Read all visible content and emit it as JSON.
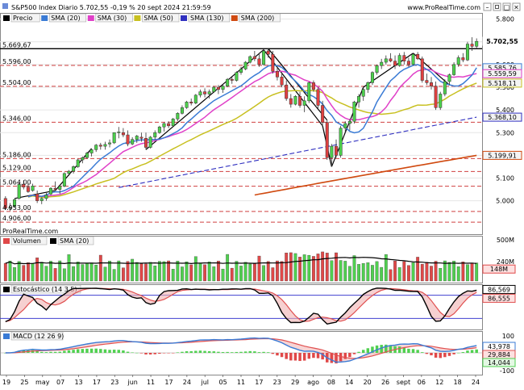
{
  "header": {
    "title": "S&P500 Index Diario 5.702,55 -0,19 % 20 sept 2024 21:59:59",
    "brand": "www.ProRealTime.com",
    "watermark": "ProRealTime.com"
  },
  "colors": {
    "up": "#4cd04c",
    "down": "#e04040",
    "sma20": "#3a7bd5",
    "sma30": "#e040c8",
    "sma50": "#c8c020",
    "sma130": "#3030c0",
    "sma200": "#d04a10",
    "volume_up": "#50d050",
    "volume_down": "#e04848",
    "stoch_k": "#000000",
    "stoch_d": "#e05050",
    "macd_line": "#3a7bd5",
    "macd_signal": "#e05050"
  },
  "chart_data": [
    {
      "type": "candlestick",
      "name": "price",
      "legend": [
        "Precio",
        "SMA (20)",
        "SMA (30)",
        "SMA (50)",
        "SMA (130)",
        "SMA (200)"
      ],
      "ylim": [
        4860,
        5820
      ],
      "yticks": [
        "5.800",
        "5.700",
        "5.600",
        "5.500",
        "5.400",
        "5.300",
        "5.200",
        "5.100",
        "5.000"
      ],
      "left_levels": [
        "5.669,67",
        "5.596,00",
        "5.504,00",
        "5.346,00",
        "5.186,00",
        "5.129,00",
        "5.064,00",
        "4.953,00",
        "4.906,00"
      ],
      "right_labels": {
        "last": "5.702,55",
        "sma20": "5.585,76",
        "sma30": "5.559,59",
        "sma50": "5.518,11",
        "sma130": "5.368,10",
        "sma200": "5.199,91"
      },
      "x_labels": [
        "19",
        "25",
        "may",
        "07",
        "13",
        "17",
        "23",
        "jun",
        "11",
        "17",
        "24",
        "jul",
        "05",
        "11",
        "17",
        "23",
        "29",
        "ago",
        "08",
        "14",
        "20",
        "26",
        "sept",
        "06",
        "12",
        "18",
        "24"
      ],
      "candles_ohlc": [
        [
          5010,
          5020,
          4960,
          4967
        ],
        [
          4967,
          4990,
          4955,
          4970
        ],
        [
          4975,
          5010,
          4970,
          5005
        ],
        [
          5010,
          5080,
          5005,
          5072
        ],
        [
          5072,
          5090,
          5050,
          5060
        ],
        [
          5060,
          5075,
          5035,
          5040
        ],
        [
          5045,
          5075,
          5040,
          5065
        ],
        [
          5030,
          5045,
          4990,
          5000
        ],
        [
          5000,
          5015,
          4985,
          5010
        ],
        [
          5010,
          5035,
          5000,
          5025
        ],
        [
          5030,
          5060,
          5025,
          5055
        ],
        [
          5055,
          5085,
          5045,
          5050
        ],
        [
          5050,
          5070,
          5030,
          5064
        ],
        [
          5064,
          5125,
          5060,
          5120
        ],
        [
          5120,
          5135,
          5110,
          5130
        ],
        [
          5130,
          5155,
          5120,
          5150
        ],
        [
          5150,
          5185,
          5145,
          5180
        ],
        [
          5180,
          5195,
          5165,
          5190
        ],
        [
          5190,
          5215,
          5185,
          5210
        ],
        [
          5210,
          5230,
          5195,
          5225
        ],
        [
          5225,
          5250,
          5215,
          5245
        ],
        [
          5245,
          5255,
          5225,
          5240
        ],
        [
          5240,
          5260,
          5225,
          5248
        ],
        [
          5250,
          5270,
          5235,
          5255
        ],
        [
          5255,
          5300,
          5250,
          5300
        ],
        [
          5300,
          5325,
          5275,
          5303
        ],
        [
          5300,
          5320,
          5280,
          5290
        ],
        [
          5290,
          5310,
          5240,
          5250
        ],
        [
          5250,
          5280,
          5245,
          5270
        ],
        [
          5270,
          5290,
          5255,
          5285
        ],
        [
          5280,
          5300,
          5260,
          5275
        ],
        [
          5275,
          5300,
          5225,
          5235
        ],
        [
          5235,
          5285,
          5230,
          5280
        ],
        [
          5280,
          5310,
          5270,
          5300
        ],
        [
          5300,
          5330,
          5295,
          5325
        ],
        [
          5325,
          5345,
          5305,
          5340
        ],
        [
          5340,
          5350,
          5320,
          5330
        ],
        [
          5330,
          5365,
          5325,
          5360
        ],
        [
          5360,
          5390,
          5350,
          5385
        ],
        [
          5385,
          5420,
          5380,
          5410
        ],
        [
          5410,
          5440,
          5405,
          5435
        ],
        [
          5435,
          5450,
          5420,
          5430
        ],
        [
          5430,
          5470,
          5425,
          5465
        ],
        [
          5465,
          5490,
          5455,
          5480
        ],
        [
          5480,
          5495,
          5455,
          5470
        ],
        [
          5470,
          5490,
          5450,
          5480
        ],
        [
          5480,
          5505,
          5475,
          5500
        ],
        [
          5500,
          5510,
          5470,
          5490
        ],
        [
          5490,
          5510,
          5475,
          5505
        ],
        [
          5505,
          5540,
          5500,
          5535
        ],
        [
          5535,
          5545,
          5515,
          5530
        ],
        [
          5530,
          5570,
          5525,
          5565
        ],
        [
          5565,
          5590,
          5555,
          5580
        ],
        [
          5580,
          5615,
          5575,
          5610
        ],
        [
          5610,
          5640,
          5605,
          5635
        ],
        [
          5635,
          5660,
          5615,
          5625
        ],
        [
          5625,
          5650,
          5590,
          5600
        ],
        [
          5600,
          5665,
          5595,
          5660
        ],
        [
          5660,
          5670,
          5630,
          5645
        ],
        [
          5645,
          5660,
          5560,
          5570
        ],
        [
          5570,
          5590,
          5530,
          5545
        ],
        [
          5545,
          5565,
          5500,
          5510
        ],
        [
          5510,
          5530,
          5440,
          5450
        ],
        [
          5450,
          5470,
          5410,
          5425
        ],
        [
          5425,
          5465,
          5420,
          5460
        ],
        [
          5460,
          5480,
          5410,
          5420
        ],
        [
          5420,
          5460,
          5390,
          5440
        ],
        [
          5440,
          5525,
          5430,
          5520
        ],
        [
          5520,
          5530,
          5480,
          5490
        ],
        [
          5490,
          5500,
          5400,
          5420
        ],
        [
          5420,
          5440,
          5330,
          5345
        ],
        [
          5345,
          5355,
          5180,
          5190
        ],
        [
          5190,
          5250,
          5150,
          5240
        ],
        [
          5240,
          5270,
          5190,
          5200
        ],
        [
          5200,
          5330,
          5190,
          5320
        ],
        [
          5320,
          5350,
          5300,
          5340
        ],
        [
          5340,
          5360,
          5310,
          5350
        ],
        [
          5350,
          5440,
          5340,
          5435
        ],
        [
          5435,
          5470,
          5410,
          5460
        ],
        [
          5460,
          5500,
          5440,
          5490
        ],
        [
          5490,
          5525,
          5475,
          5520
        ],
        [
          5520,
          5570,
          5510,
          5565
        ],
        [
          5565,
          5600,
          5555,
          5595
        ],
        [
          5595,
          5625,
          5580,
          5610
        ],
        [
          5610,
          5640,
          5600,
          5625
        ],
        [
          5625,
          5650,
          5610,
          5615
        ],
        [
          5615,
          5640,
          5580,
          5595
        ],
        [
          5595,
          5650,
          5590,
          5640
        ],
        [
          5640,
          5655,
          5600,
          5615
        ],
        [
          5615,
          5630,
          5590,
          5600
        ],
        [
          5600,
          5650,
          5595,
          5645
        ],
        [
          5645,
          5655,
          5620,
          5625
        ],
        [
          5625,
          5635,
          5520,
          5530
        ],
        [
          5530,
          5560,
          5510,
          5520
        ],
        [
          5520,
          5545,
          5490,
          5505
        ],
        [
          5505,
          5525,
          5400,
          5410
        ],
        [
          5410,
          5480,
          5400,
          5470
        ],
        [
          5470,
          5535,
          5460,
          5525
        ],
        [
          5525,
          5560,
          5510,
          5555
        ],
        [
          5555,
          5610,
          5550,
          5600
        ],
        [
          5600,
          5640,
          5590,
          5630
        ],
        [
          5630,
          5650,
          5610,
          5620
        ],
        [
          5620,
          5700,
          5615,
          5690
        ],
        [
          5690,
          5720,
          5660,
          5680
        ],
        [
          5680,
          5715,
          5670,
          5702
        ]
      ]
    },
    {
      "type": "bar",
      "name": "volume",
      "legend": [
        "Volumen",
        "SMA (20)"
      ],
      "yticks": [
        "500M",
        "240M"
      ],
      "right_label": "148M"
    },
    {
      "type": "line",
      "name": "stochastic",
      "legend": [
        "Estocástico (14 3 5)"
      ],
      "yticks": [
        "100"
      ],
      "right_labels": [
        "86,569",
        "86,555"
      ]
    },
    {
      "type": "line",
      "name": "macd",
      "legend": [
        "MACD (12 26 9)"
      ],
      "yticks": [
        "100",
        "0",
        "-100"
      ],
      "right_labels": [
        "43,978",
        "29,884",
        "14,044"
      ]
    }
  ]
}
